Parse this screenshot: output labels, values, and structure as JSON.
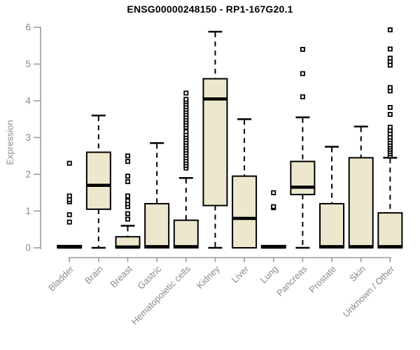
{
  "header": {
    "title": "ENSG00000248150 - RP1-167G20.1"
  },
  "chart_data": {
    "type": "boxplot",
    "title": "ENSG00000248150 - RP1-167G20.1",
    "xlabel": "",
    "ylabel": "Expression",
    "ylim": [
      0,
      6
    ],
    "y_ticks": [
      0,
      1,
      2,
      3,
      4,
      5,
      6
    ],
    "grid": false,
    "legend": "none",
    "whisker_style": "dashed",
    "outlier_marker": "open-square",
    "colors": {
      "box_fill": "#ede8cd",
      "box_border": "#000000",
      "median": "#000000",
      "axis_line": "#9b9b9b",
      "tick_label": "#8a8a8a",
      "title_text": "#000000",
      "background": "#ffffff"
    },
    "categories": [
      "Bladder",
      "Brain",
      "Breast",
      "Gastric",
      "Hematopoietic cells",
      "Kidney",
      "Liver",
      "Lung",
      "Pancreas",
      "Prostate",
      "Skin",
      "Unknown / Other"
    ],
    "series": [
      {
        "category": "Bladder",
        "whisker_low": 0,
        "q1": 0,
        "median": 0.02,
        "q3": 0.06,
        "whisker_high": 0.06,
        "outliers": [
          0.7,
          0.9,
          1.25,
          1.31,
          1.41,
          2.3
        ]
      },
      {
        "category": "Brain",
        "whisker_low": 0,
        "q1": 1.05,
        "median": 1.7,
        "q3": 2.6,
        "whisker_high": 3.6,
        "outliers": []
      },
      {
        "category": "Breast",
        "whisker_low": 0,
        "q1": 0,
        "median": 0.02,
        "q3": 0.3,
        "whisker_high": 0.6,
        "outliers": [
          0.78,
          0.93,
          1.12,
          1.2,
          1.28,
          1.41,
          1.8,
          1.95,
          2.35,
          2.5
        ]
      },
      {
        "category": "Gastric",
        "whisker_low": 0,
        "q1": 0,
        "median": 0.03,
        "q3": 1.2,
        "whisker_high": 2.85,
        "outliers": []
      },
      {
        "category": "Hematopoietic cells",
        "whisker_low": 0,
        "q1": 0,
        "median": 0.03,
        "q3": 0.75,
        "whisker_high": 1.9,
        "outliers": [
          2.17,
          2.24,
          2.31,
          2.38,
          2.45,
          2.52,
          2.59,
          2.66,
          2.73,
          2.8,
          2.87,
          2.94,
          3.01,
          3.08,
          3.16,
          3.28,
          3.35,
          3.42,
          3.49,
          3.56,
          3.63,
          3.7,
          3.77,
          3.84,
          3.91,
          3.98,
          4.04,
          4.21
        ]
      },
      {
        "category": "Kidney",
        "whisker_low": 0,
        "q1": 1.15,
        "median": 4.05,
        "q3": 4.6,
        "whisker_high": 5.88,
        "outliers": []
      },
      {
        "category": "Liver",
        "whisker_low": 0,
        "q1": 0,
        "median": 0.8,
        "q3": 1.95,
        "whisker_high": 3.5,
        "outliers": []
      },
      {
        "category": "Lung",
        "whisker_low": 0,
        "q1": 0,
        "median": 0.02,
        "q3": 0.06,
        "whisker_high": 0.06,
        "outliers": [
          1.09,
          1.12,
          1.5
        ]
      },
      {
        "category": "Pancreas",
        "whisker_low": 0,
        "q1": 1.45,
        "median": 1.65,
        "q3": 2.35,
        "whisker_high": 3.55,
        "outliers": [
          4.11,
          4.74,
          5.4
        ]
      },
      {
        "category": "Prostate",
        "whisker_low": 0,
        "q1": 0,
        "median": 0.03,
        "q3": 1.2,
        "whisker_high": 2.75,
        "outliers": []
      },
      {
        "category": "Skin",
        "whisker_low": 0,
        "q1": 0,
        "median": 0.03,
        "q3": 2.45,
        "whisker_high": 3.3,
        "outliers": []
      },
      {
        "category": "Unknown / Other",
        "whisker_low": 0,
        "q1": 0,
        "median": 0.03,
        "q3": 0.95,
        "whisker_high": 2.45,
        "outliers": [
          2.5,
          2.56,
          2.62,
          2.68,
          2.74,
          2.8,
          2.87,
          2.94,
          3.01,
          3.1,
          3.19,
          3.28,
          3.63,
          3.82,
          4.27,
          4.36,
          4.97,
          5.07,
          5.16,
          5.41,
          5.93
        ]
      }
    ]
  }
}
